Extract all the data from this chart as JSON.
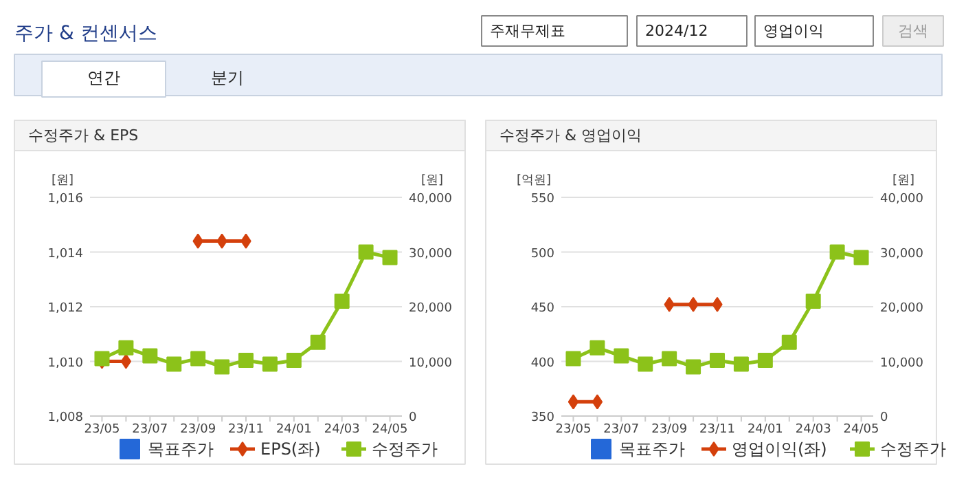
{
  "chart_data": [
    {
      "type": "other",
      "title": "주가 & 컨센서스",
      "annotations": [
        "주재무제표",
        "2024/12",
        "영업이익",
        "검색",
        "연간",
        "분기"
      ]
    },
    {
      "type": "line",
      "title": "수정주가 & EPS",
      "ylabel": "[원]",
      "y2label": "[원]",
      "categories": [
        "23/05",
        null,
        "23/07",
        null,
        "23/09",
        null,
        "23/11",
        null,
        "24/01",
        null,
        "24/03",
        null,
        "24/05"
      ],
      "ylim": [
        1008,
        1016
      ],
      "yticks": [
        {
          "value": 1008,
          "label": "1,008"
        },
        {
          "value": 1010,
          "label": "1,010"
        },
        {
          "value": 1012,
          "label": "1,012"
        },
        {
          "value": 1014,
          "label": "1,014"
        },
        {
          "value": 1016,
          "label": "1,016"
        }
      ],
      "y2lim": [
        0,
        40000
      ],
      "y2ticks": [
        0,
        {
          "value": 10000,
          "label": "10,000"
        },
        {
          "value": 20000,
          "label": "20,000"
        },
        {
          "value": 30000,
          "label": "30,000"
        },
        {
          "value": 40000,
          "label": "40,000"
        }
      ],
      "grid": "y",
      "legend": "bottom",
      "series": [
        {
          "name": "목표주가",
          "type": "scatter",
          "marker": "square",
          "color": "#2468d8",
          "values": [
            null,
            null,
            null,
            null,
            null,
            null,
            null,
            null,
            null,
            null,
            null,
            null,
            null
          ]
        },
        {
          "name": "EPS(좌)",
          "type": "line",
          "marker": "diamond",
          "color": "#d4400c",
          "values": [
            1010,
            1010,
            null,
            null,
            1014.4,
            1014.4,
            1014.4,
            null,
            null,
            null,
            null,
            null,
            null
          ]
        },
        {
          "name": "수정주가",
          "type": "line",
          "marker": "square",
          "color": "#8cc21a",
          "axis": "y2",
          "values": [
            10500,
            12500,
            11000,
            9500,
            10500,
            9000,
            10200,
            9500,
            10200,
            13500,
            21000,
            30000,
            29000
          ]
        }
      ]
    },
    {
      "type": "line",
      "title": "수정주가 & 영업이익",
      "ylabel": "[억원]",
      "y2label": "[원]",
      "categories": [
        "23/05",
        null,
        "23/07",
        null,
        "23/09",
        null,
        "23/11",
        null,
        "24/01",
        null,
        "24/03",
        null,
        "24/05"
      ],
      "ylim": [
        350,
        550
      ],
      "yticks": [
        350,
        400,
        450,
        500,
        550
      ],
      "y2lim": [
        0,
        40000
      ],
      "y2ticks": [
        0,
        {
          "value": 10000,
          "label": "10,000"
        },
        {
          "value": 20000,
          "label": "20,000"
        },
        {
          "value": 30000,
          "label": "30,000"
        },
        {
          "value": 40000,
          "label": "40,000"
        }
      ],
      "grid": "y",
      "legend": "bottom",
      "series": [
        {
          "name": "목표주가",
          "type": "scatter",
          "marker": "square",
          "color": "#2468d8",
          "values": [
            null,
            null,
            null,
            null,
            null,
            null,
            null,
            null,
            null,
            null,
            null,
            null,
            null
          ]
        },
        {
          "name": "영업이익(좌)",
          "type": "line",
          "marker": "diamond",
          "color": "#d4400c",
          "values": [
            363,
            363,
            null,
            null,
            452,
            452,
            452,
            null,
            null,
            null,
            null,
            null,
            null
          ]
        },
        {
          "name": "수정주가",
          "type": "line",
          "marker": "square",
          "color": "#8cc21a",
          "axis": "y2",
          "values": [
            10500,
            12500,
            11000,
            9500,
            10500,
            9000,
            10200,
            9500,
            10200,
            13500,
            21000,
            30000,
            29000
          ]
        }
      ]
    }
  ]
}
